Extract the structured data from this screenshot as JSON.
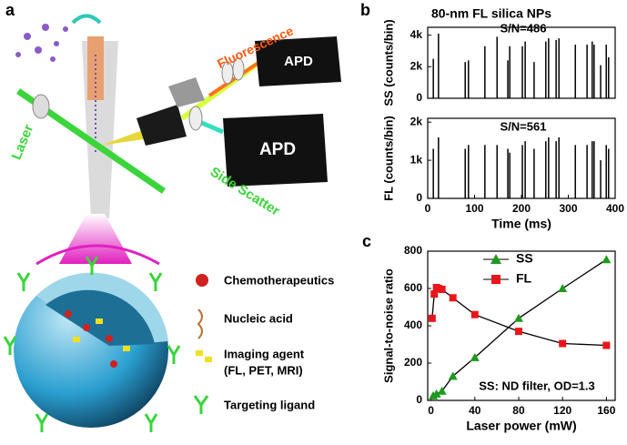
{
  "diagram": {
    "panel_label": "a",
    "detector_top": "APD",
    "detector_side": "APD",
    "fluorescence": "Fluorescence",
    "laser": "Laser",
    "side_scatter": "Side Scatter",
    "legend": [
      "Chemotherapeutics",
      "Nucleic acid",
      "Imaging agent",
      "(FL, PET, MRI)",
      "Targeting ligand"
    ]
  },
  "chart_data": [
    {
      "type": "spike",
      "panel_label": "b",
      "title": "80-nm FL silica NPs",
      "annotation": "S/N=486",
      "ylabel": "SS (counts/bin)",
      "color": "#000000",
      "x": [
        12,
        23,
        80,
        87,
        122,
        148,
        171,
        175,
        202,
        208,
        227,
        252,
        258,
        274,
        280,
        315,
        340,
        351,
        355,
        369,
        381,
        386
      ],
      "values": [
        2500,
        4100,
        2300,
        2400,
        3300,
        3900,
        2400,
        3300,
        3300,
        3600,
        2300,
        3600,
        3800,
        3700,
        3800,
        3400,
        3400,
        3600,
        3400,
        2100,
        3400,
        2600
      ],
      "xlim": [
        0,
        400
      ],
      "ylim": [
        0,
        4500
      ],
      "yticks": [
        0,
        {
          "value": 2000,
          "label": "2k"
        },
        {
          "value": 4000,
          "label": "4k"
        }
      ]
    },
    {
      "type": "spike",
      "annotation": "S/N=561",
      "ylabel": "FL (counts/bin)",
      "xlabel": "Time (ms)",
      "color": "#000000",
      "x": [
        12,
        23,
        80,
        87,
        122,
        148,
        171,
        175,
        202,
        208,
        227,
        252,
        258,
        274,
        280,
        315,
        340,
        351,
        355,
        369,
        381,
        386
      ],
      "values": [
        1300,
        1600,
        1300,
        1400,
        1400,
        1400,
        1300,
        1200,
        1400,
        1500,
        1300,
        1500,
        1600,
        1500,
        1600,
        1400,
        1400,
        1500,
        1500,
        1000,
        1400,
        1300
      ],
      "xlim": [
        0,
        400
      ],
      "ylim": [
        0,
        2100
      ],
      "xticks": [
        0,
        100,
        200,
        300,
        400
      ],
      "yticks": [
        0,
        {
          "value": 1000,
          "label": "1k"
        },
        {
          "value": 2000,
          "label": "2k"
        }
      ]
    },
    {
      "type": "line",
      "panel_label": "c",
      "xlabel": "Laser power (mW)",
      "ylabel": "Signal-to-noise ratio",
      "annotation": "SS: ND filter, OD=1.3",
      "series": [
        {
          "name": "SS",
          "color": "#1e9a1e",
          "marker": "triangle",
          "x": [
            2,
            5,
            10,
            20,
            40,
            80,
            120,
            160
          ],
          "values": [
            25,
            35,
            50,
            130,
            230,
            440,
            600,
            755
          ]
        },
        {
          "name": "FL",
          "color": "#e8161b",
          "marker": "square",
          "x": [
            1,
            3,
            5,
            7,
            10,
            20,
            40,
            80,
            120,
            160
          ],
          "values": [
            440,
            570,
            605,
            600,
            595,
            550,
            460,
            370,
            305,
            295
          ]
        }
      ],
      "xlim": [
        -3,
        168
      ],
      "ylim": [
        0,
        800
      ],
      "xticks": [
        0,
        40,
        80,
        120,
        160
      ],
      "yticks": [
        0,
        200,
        400,
        600,
        800
      ]
    }
  ]
}
